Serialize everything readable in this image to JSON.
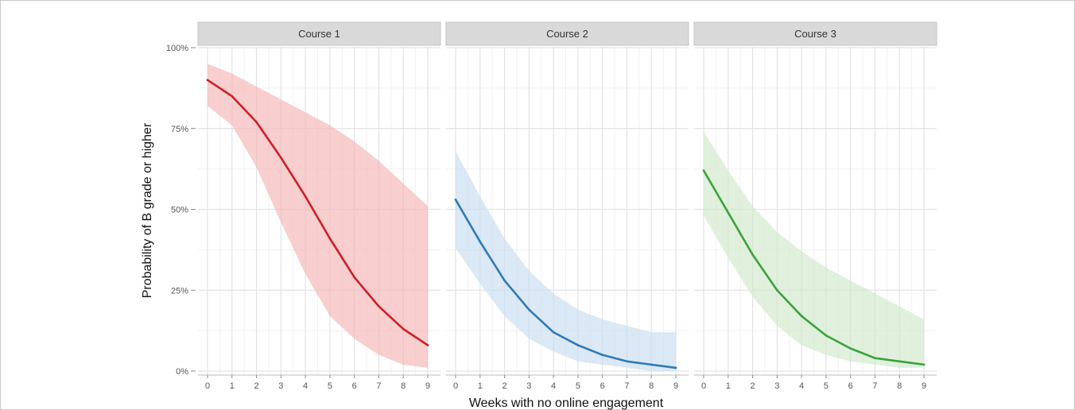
{
  "chart_data": {
    "type": "line",
    "layout": "faceted",
    "xlabel": "Weeks with no online engagement",
    "ylabel": "Probability of B grade or higher",
    "x": [
      0,
      1,
      2,
      3,
      4,
      5,
      6,
      7,
      8,
      9
    ],
    "xlim": [
      0,
      9
    ],
    "ylim": [
      0,
      1
    ],
    "y_ticks": [
      0,
      0.25,
      0.5,
      0.75,
      1
    ],
    "y_tick_labels": [
      "0%",
      "25%",
      "50%",
      "75%",
      "100%"
    ],
    "grid": true,
    "confidence_band": true,
    "facets": [
      {
        "label": "Course 1",
        "color": "#cc1f26",
        "band_color": "#f4b4b3",
        "y": [
          0.9,
          0.85,
          0.77,
          0.66,
          0.54,
          0.41,
          0.29,
          0.2,
          0.13,
          0.08
        ],
        "lower": [
          0.82,
          0.76,
          0.63,
          0.46,
          0.3,
          0.17,
          0.1,
          0.05,
          0.02,
          0.01
        ],
        "upper": [
          0.95,
          0.92,
          0.88,
          0.84,
          0.8,
          0.76,
          0.71,
          0.65,
          0.58,
          0.51
        ]
      },
      {
        "label": "Course 2",
        "color": "#2f79b6",
        "band_color": "#c8dcef",
        "y": [
          0.53,
          0.4,
          0.28,
          0.19,
          0.12,
          0.08,
          0.05,
          0.03,
          0.02,
          0.01
        ],
        "lower": [
          0.38,
          0.27,
          0.17,
          0.1,
          0.06,
          0.03,
          0.02,
          0.01,
          0.0,
          0.0
        ],
        "upper": [
          0.68,
          0.54,
          0.41,
          0.31,
          0.24,
          0.19,
          0.16,
          0.14,
          0.12,
          0.12
        ]
      },
      {
        "label": "Course 3",
        "color": "#3aa23c",
        "band_color": "#cfe8c9",
        "y": [
          0.62,
          0.49,
          0.36,
          0.25,
          0.17,
          0.11,
          0.07,
          0.04,
          0.03,
          0.02
        ],
        "lower": [
          0.48,
          0.35,
          0.23,
          0.14,
          0.08,
          0.05,
          0.03,
          0.02,
          0.01,
          0.01
        ],
        "upper": [
          0.74,
          0.62,
          0.51,
          0.43,
          0.37,
          0.32,
          0.28,
          0.24,
          0.2,
          0.16
        ]
      }
    ]
  }
}
